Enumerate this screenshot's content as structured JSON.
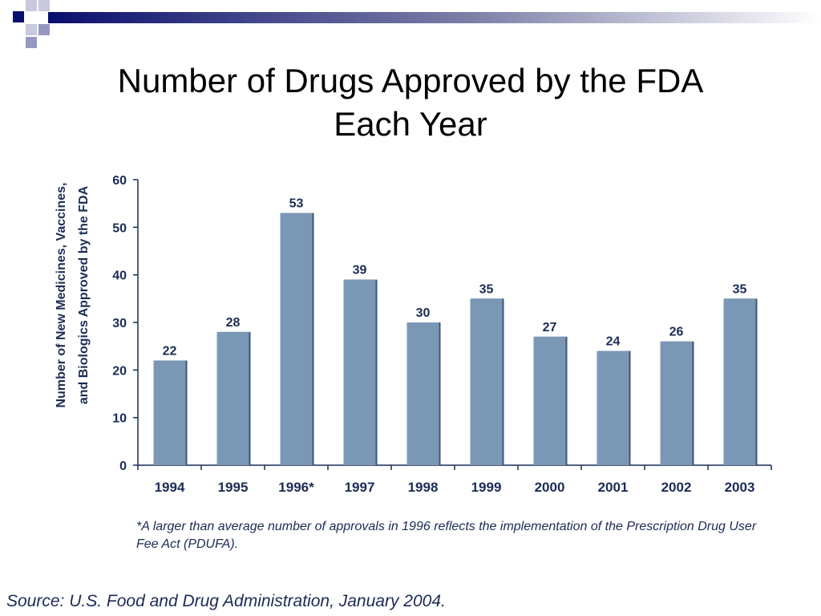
{
  "slide": {
    "title_line1": "Number of Drugs Approved by the FDA",
    "title_line2": "Each Year",
    "footnote": "*A larger than average number of approvals in 1996 reflects the implementation of the Prescription Drug User Fee Act (PDUFA).",
    "source": "Source: U.S. Food and Drug Administration, January 2004."
  },
  "chart_data": {
    "type": "bar",
    "categories": [
      "1994",
      "1995",
      "1996*",
      "1997",
      "1998",
      "1999",
      "2000",
      "2001",
      "2002",
      "2003"
    ],
    "values": [
      22,
      28,
      53,
      39,
      30,
      35,
      27,
      24,
      26,
      35
    ],
    "data_labels": [
      "22",
      "28",
      "53",
      "39",
      "30",
      "35",
      "27",
      "24",
      "26",
      "35"
    ],
    "ylabel_line1": "Number of New Medicines, Vaccines,",
    "ylabel_line2": "and Biologics Approved by the FDA",
    "ylim": [
      0,
      60
    ],
    "yticks": [
      0,
      10,
      20,
      30,
      40,
      50,
      60
    ],
    "grid": false,
    "colors": {
      "bar": "#7a98b6",
      "bar_shadow": "#3d5674",
      "axis": "#1a2b55",
      "text": "#1a2b55"
    }
  }
}
